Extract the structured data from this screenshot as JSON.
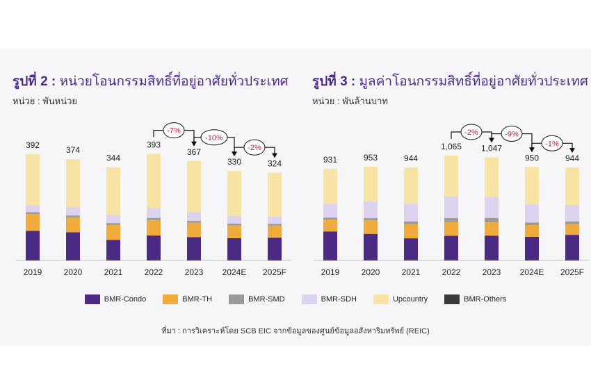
{
  "colors": {
    "bmr_condo": "#4a2a83",
    "bmr_th": "#efac3c",
    "bmr_smd": "#9a9a9a",
    "bmr_sdh": "#ddd3ef",
    "upcountry": "#f7e3a3",
    "bmr_others": "#3a3a3a"
  },
  "legend": [
    {
      "key": "bmr_condo",
      "label": "BMR-Condo"
    },
    {
      "key": "bmr_th",
      "label": "BMR-TH"
    },
    {
      "key": "bmr_smd",
      "label": "BMR-SMD"
    },
    {
      "key": "bmr_sdh",
      "label": "BMR-SDH"
    },
    {
      "key": "upcountry",
      "label": "Upcountry"
    },
    {
      "key": "bmr_others",
      "label": "BMR-Others"
    }
  ],
  "source": "ที่มา : การวิเคราะห์โดย SCB EIC จากข้อมูลของศูนย์ข้อมูลอสังหาริมทรัพย์ (REIC)",
  "chart_data": [
    {
      "type": "bar",
      "stacked": true,
      "title_prefix": "รูปที่ 2 :",
      "title_text": "หน่วยโอนกรรมสิทธิ์ที่อยู่อาศัยทั่วประเทศ",
      "unit": "หน่วย : พันหน่วย",
      "categories": [
        "2019",
        "2020",
        "2021",
        "2022",
        "2023",
        "2024E",
        "2025F"
      ],
      "total_labels": [
        "392",
        "374",
        "344",
        "393",
        "367",
        "330",
        "324"
      ],
      "totals": [
        392,
        374,
        344,
        393,
        367,
        330,
        324
      ],
      "series": [
        {
          "name": "BMR-Others",
          "key": "bmr_others",
          "values": [
            4,
            4,
            4,
            4,
            4,
            4,
            4
          ]
        },
        {
          "name": "BMR-Condo",
          "key": "bmr_condo",
          "values": [
            105,
            100,
            72,
            88,
            82,
            78,
            80
          ]
        },
        {
          "name": "BMR-TH",
          "key": "bmr_th",
          "values": [
            62,
            55,
            55,
            57,
            53,
            47,
            45
          ]
        },
        {
          "name": "BMR-SMD",
          "key": "bmr_smd",
          "values": [
            7,
            7,
            7,
            8,
            7,
            7,
            6
          ]
        },
        {
          "name": "BMR-SDH",
          "key": "bmr_sdh",
          "values": [
            26,
            30,
            30,
            36,
            34,
            29,
            27
          ]
        },
        {
          "name": "Upcountry",
          "key": "upcountry",
          "values": [
            188,
            178,
            176,
            200,
            187,
            165,
            162
          ]
        }
      ],
      "annotations": [
        {
          "label": "-7%",
          "from": "2022",
          "to": "2023"
        },
        {
          "label": "-10%",
          "from": "2023",
          "to": "2024E"
        },
        {
          "label": "-2%",
          "from": "2024E",
          "to": "2025F"
        }
      ]
    },
    {
      "type": "bar",
      "stacked": true,
      "title_prefix": "รูปที่ 3 :",
      "title_text": "มูลค่าโอนกรรมสิทธิ์ที่อยู่อาศัยทั่วประเทศ",
      "unit": "หน่วย : พันล้านบาท",
      "categories": [
        "2019",
        "2020",
        "2021",
        "2022",
        "2023",
        "2024E",
        "2025F"
      ],
      "total_labels": [
        "931",
        "953",
        "944",
        "1,065",
        "1,047",
        "950",
        "944"
      ],
      "totals": [
        931,
        953,
        944,
        1065,
        1047,
        950,
        944
      ],
      "series": [
        {
          "name": "BMR-Others",
          "key": "bmr_others",
          "values": [
            10,
            10,
            10,
            10,
            10,
            10,
            10
          ]
        },
        {
          "name": "BMR-Condo",
          "key": "bmr_condo",
          "values": [
            285,
            260,
            215,
            240,
            242,
            230,
            250
          ]
        },
        {
          "name": "BMR-TH",
          "key": "bmr_th",
          "values": [
            120,
            140,
            145,
            140,
            135,
            120,
            110
          ]
        },
        {
          "name": "BMR-SMD",
          "key": "bmr_smd",
          "values": [
            20,
            20,
            25,
            40,
            45,
            25,
            25
          ]
        },
        {
          "name": "BMR-SDH",
          "key": "bmr_sdh",
          "values": [
            145,
            170,
            185,
            220,
            210,
            185,
            170
          ]
        },
        {
          "name": "Upcountry",
          "key": "upcountry",
          "values": [
            351,
            353,
            364,
            415,
            405,
            380,
            379
          ]
        }
      ],
      "annotations": [
        {
          "label": "-2%",
          "from": "2022",
          "to": "2023"
        },
        {
          "label": "-9%",
          "from": "2023",
          "to": "2024E"
        },
        {
          "label": "-1%",
          "from": "2024E",
          "to": "2025F"
        }
      ]
    }
  ]
}
